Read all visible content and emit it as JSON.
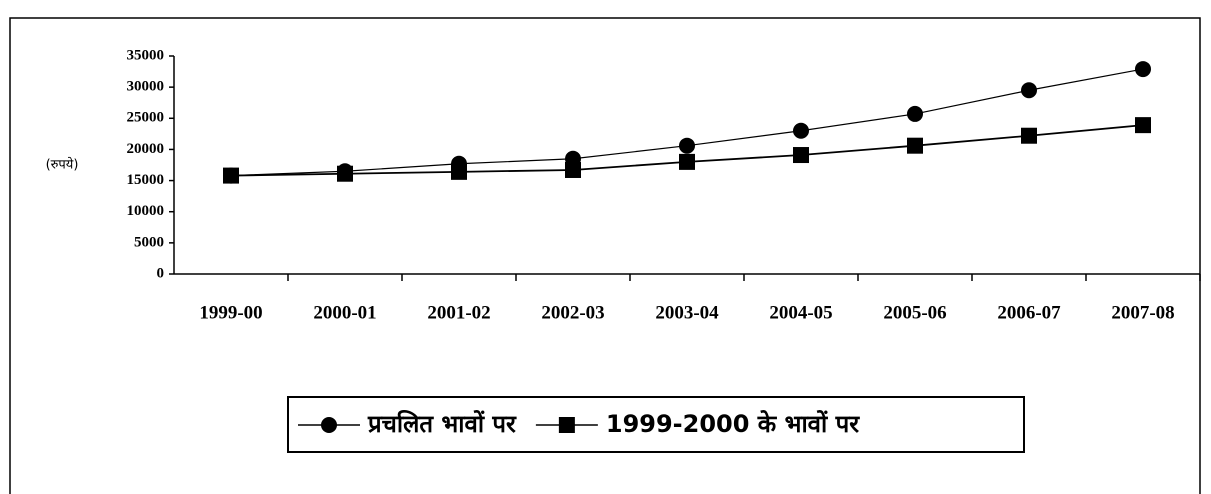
{
  "chart_data": {
    "type": "line",
    "y_label": "(रुपये)",
    "categories": [
      "1999-00",
      "2000-01",
      "2001-02",
      "2002-03",
      "2003-04",
      "2004-05",
      "2005-06",
      "2006-07",
      "2007-08"
    ],
    "series": [
      {
        "name": "प्रचलित भावों पर",
        "color": "#000000",
        "marker": "circle",
        "values": [
          15800,
          16500,
          17700,
          18500,
          20600,
          23000,
          25700,
          29500,
          32900
        ]
      },
      {
        "name": "1999-2000  के भावों पर",
        "color": "#000000",
        "marker": "square",
        "values": [
          15800,
          16100,
          16400,
          16700,
          18000,
          19100,
          20600,
          22200,
          23900
        ]
      }
    ],
    "ylim": [
      0,
      35000
    ],
    "yticks": [
      0,
      5000,
      10000,
      15000,
      20000,
      25000,
      30000,
      35000
    ],
    "grid": false
  }
}
